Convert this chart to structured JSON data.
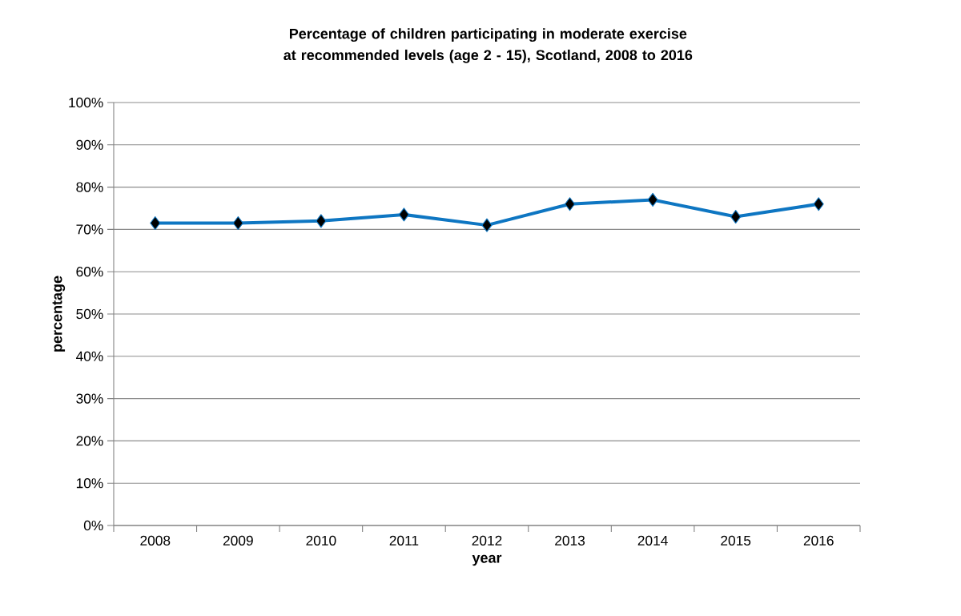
{
  "chart_data": {
    "type": "line",
    "title": "Percentage of children participating in moderate exercise at recommended levels (age 2 - 15), Scotland, 2008  to 2016",
    "xlabel": "year",
    "ylabel": "percentage",
    "categories": [
      "2008",
      "2009",
      "2010",
      "2011",
      "2012",
      "2013",
      "2014",
      "2015",
      "2016"
    ],
    "series": [
      {
        "color": "#0e76c2",
        "values": [
          71.5,
          71.5,
          72,
          73.5,
          71,
          76,
          77,
          73,
          76
        ]
      }
    ],
    "ylim": [
      0,
      100
    ],
    "yticks": [
      {
        "value": 0,
        "label": "0%"
      },
      {
        "value": 10,
        "label": "10%"
      },
      {
        "value": 20,
        "label": "20%"
      },
      {
        "value": 30,
        "label": "30%"
      },
      {
        "value": 40,
        "label": "40%"
      },
      {
        "value": 50,
        "label": "50%"
      },
      {
        "value": 60,
        "label": "60%"
      },
      {
        "value": 70,
        "label": "70%"
      },
      {
        "value": 80,
        "label": "80%"
      },
      {
        "value": 90,
        "label": "90%"
      },
      {
        "value": 100,
        "label": "100%"
      }
    ],
    "grid": "y",
    "marker": "diamond",
    "line_style": "solid"
  }
}
